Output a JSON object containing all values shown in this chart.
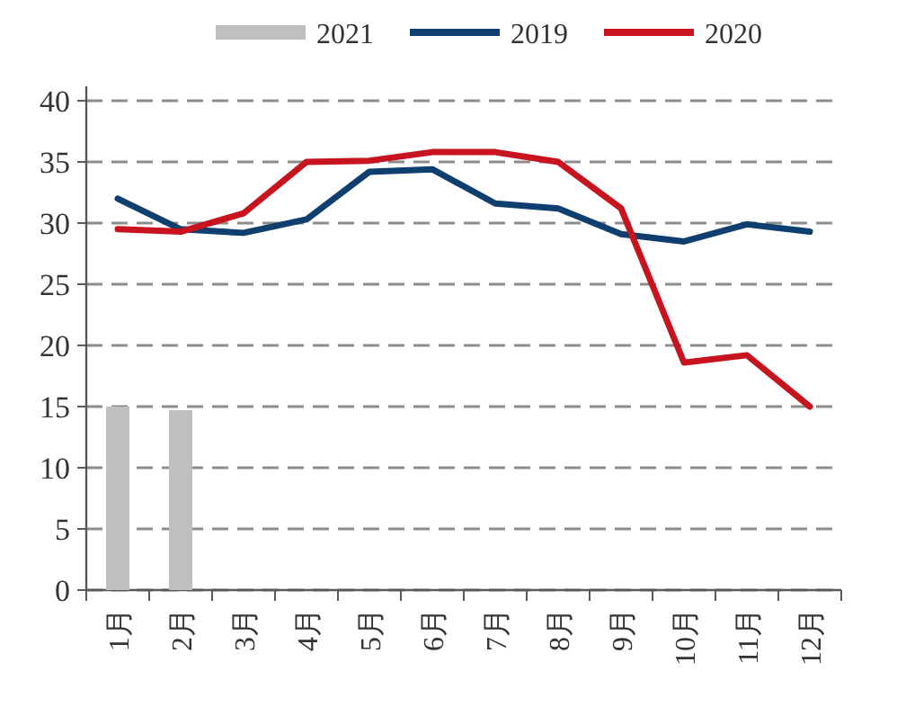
{
  "chart_data": {
    "type": "line",
    "categories": [
      "1月",
      "2月",
      "3月",
      "4月",
      "5月",
      "6月",
      "7月",
      "8月",
      "9月",
      "10月",
      "11月",
      "12月"
    ],
    "series": [
      {
        "name": "2021",
        "type": "bar",
        "color": "#bfbfbf",
        "values": [
          15.0,
          14.7,
          null,
          null,
          null,
          null,
          null,
          null,
          null,
          null,
          null,
          null
        ]
      },
      {
        "name": "2019",
        "color": "#0e3f6e",
        "values": [
          32.0,
          29.5,
          29.2,
          30.3,
          34.2,
          34.4,
          31.6,
          31.2,
          29.1,
          28.5,
          29.9,
          29.3
        ]
      },
      {
        "name": "2020",
        "color": "#c8141e",
        "values": [
          29.5,
          29.3,
          30.8,
          35.0,
          35.1,
          35.8,
          35.8,
          35.0,
          31.2,
          18.6,
          19.2,
          15.0
        ]
      }
    ],
    "ylim": [
      0,
      40
    ],
    "yticks": [
      0,
      5,
      10,
      15,
      20,
      25,
      30,
      35,
      40
    ],
    "grid": "y",
    "legend": "top",
    "line_style": "solid",
    "marker": "none"
  }
}
